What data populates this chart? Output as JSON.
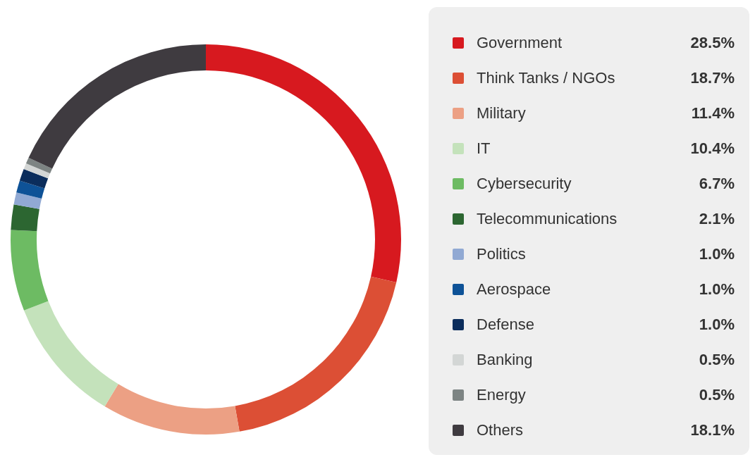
{
  "chart_data": {
    "type": "donut",
    "categories": [
      "Government",
      "Think Tanks / NGOs",
      "Military",
      "IT",
      "Cybersecurity",
      "Telecommunications",
      "Politics",
      "Aerospace",
      "Defense",
      "Banking",
      "Energy",
      "Others"
    ],
    "values": [
      28.5,
      18.7,
      11.4,
      10.4,
      6.7,
      2.1,
      1.0,
      1.0,
      1.0,
      0.5,
      0.5,
      18.1
    ],
    "value_labels": [
      "28.5%",
      "18.7%",
      "11.4%",
      "10.4%",
      "6.7%",
      "2.1%",
      "1.0%",
      "1.0%",
      "1.0%",
      "0.5%",
      "0.5%",
      "18.1%"
    ],
    "colors": [
      "#d7191f",
      "#dc4f35",
      "#eca084",
      "#c4e2bb",
      "#6dbb63",
      "#2c6631",
      "#91a9d3",
      "#0e5297",
      "#0b2d5c",
      "#d3d6d5",
      "#7d8483",
      "#3f3b40"
    ],
    "legend": "right"
  }
}
